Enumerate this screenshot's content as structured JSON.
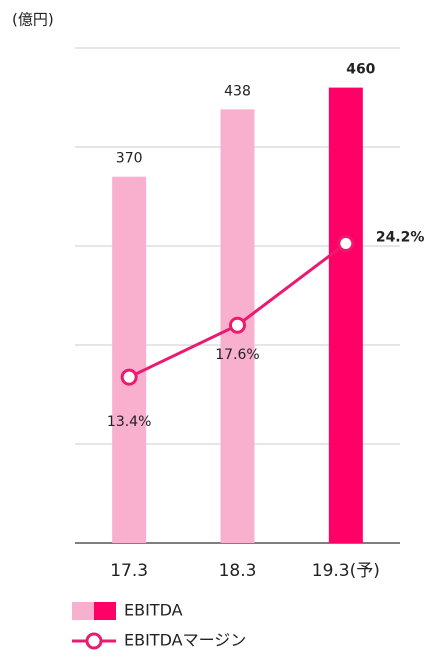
{
  "chart_data": {
    "type": "bar",
    "ylabel": "(億円)",
    "categories": [
      "17.3",
      "18.3",
      "19.3(予)"
    ],
    "ylim": [
      0,
      500
    ],
    "yticks": [
      0,
      100,
      200,
      300,
      400,
      500
    ],
    "y2lim": [
      0,
      40
    ],
    "grid": true,
    "series": [
      {
        "name": "EBITDA",
        "type": "bar",
        "values": [
          370,
          438,
          460
        ],
        "colors": [
          "#f9b0cf",
          "#f9b0cf",
          "#ff0066"
        ]
      },
      {
        "name": "EBITDAマージン",
        "type": "line",
        "axis": "y2",
        "color": "#ec1a6f",
        "values": [
          13.4,
          17.6,
          24.2
        ],
        "value_labels": [
          "13.4%",
          "17.6%",
          "24.2%"
        ]
      }
    ]
  }
}
